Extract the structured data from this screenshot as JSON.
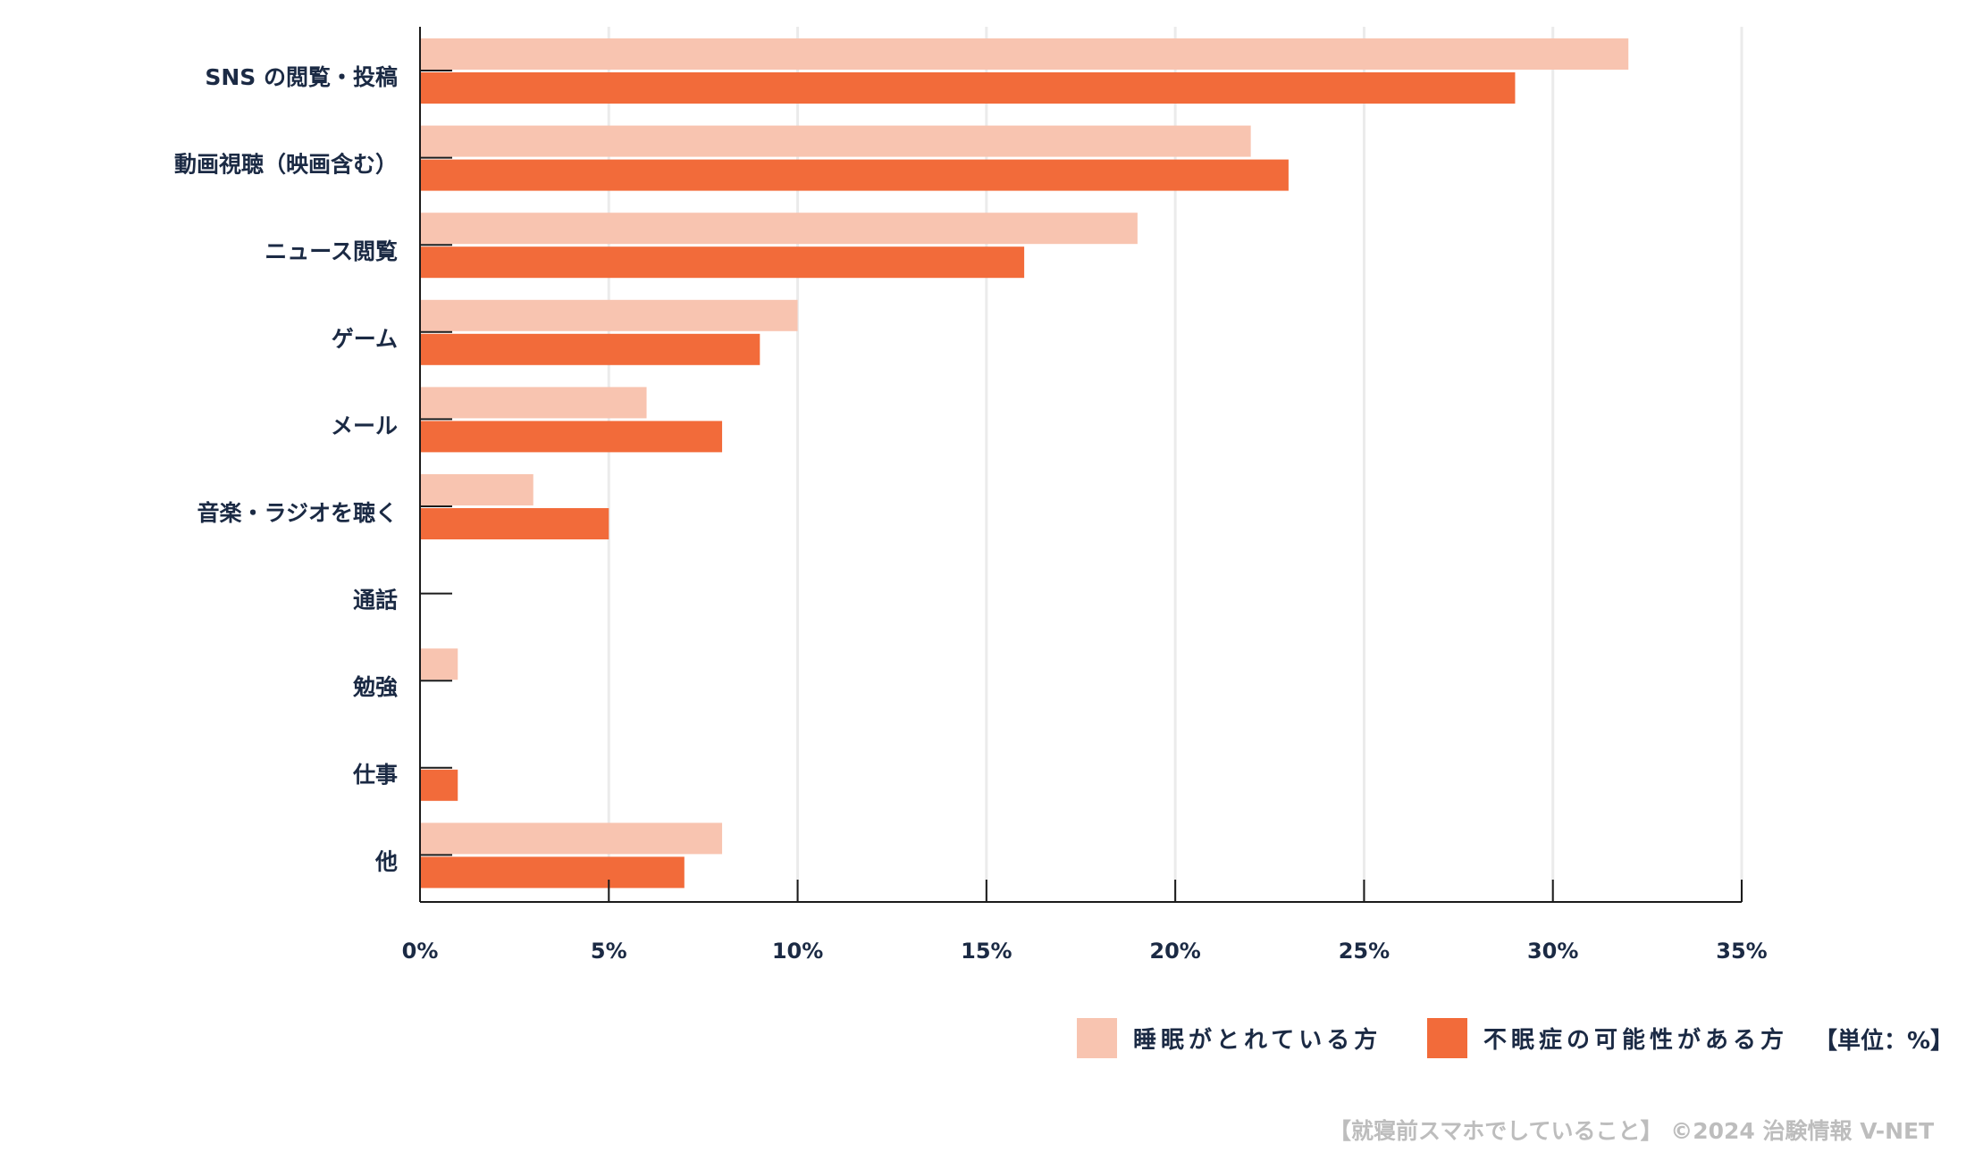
{
  "chart_data": {
    "type": "bar",
    "orientation": "horizontal",
    "categories": [
      "SNS の閲覧・投稿",
      "動画視聴（映画含む）",
      "ニュース閲覧",
      "ゲーム",
      "メール",
      "音楽・ラジオを聴く",
      "通話",
      "勉強",
      "仕事",
      "他"
    ],
    "series": [
      {
        "name": "睡眠がとれている方",
        "color": "#f8c4b0",
        "values": [
          32,
          22,
          19,
          10,
          6,
          3,
          0,
          1,
          0,
          8
        ]
      },
      {
        "name": "不眠症の可能性がある方",
        "color": "#f26b3a",
        "values": [
          29,
          23,
          16,
          9,
          8,
          5,
          0,
          0,
          1,
          7
        ]
      }
    ],
    "xlim": [
      0,
      35
    ],
    "xticks": [
      0,
      5,
      10,
      15,
      20,
      25,
      30,
      35
    ],
    "xtick_labels": [
      "0%",
      "5%",
      "10%",
      "15%",
      "20%",
      "25%",
      "30%",
      "35%"
    ],
    "grid": true,
    "legend_position": "bottom-right",
    "unit_note": "【単位：%】",
    "footer": "【就寝前スマホでしていること】 ©2024 治験情報 V-NET"
  }
}
